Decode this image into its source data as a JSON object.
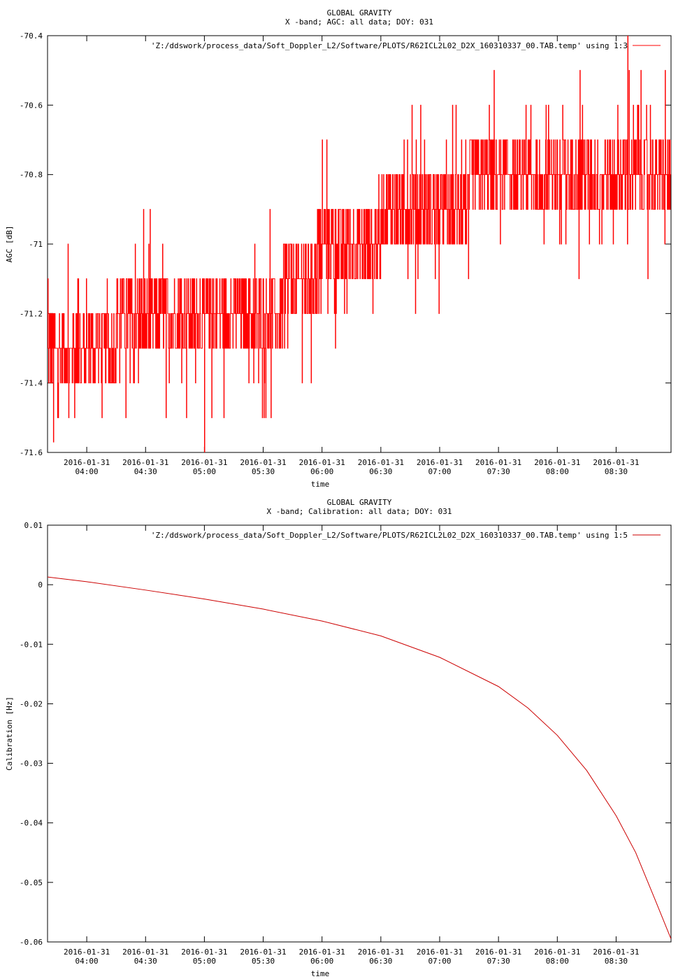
{
  "chart_data": [
    {
      "type": "line",
      "title": "GLOBAL GRAVITY",
      "subtitle": "X -band; AGC: all data; DOY: 031",
      "xlabel": "time",
      "ylabel": "AGC [dB]",
      "ylim": [
        -71.6,
        -70.4
      ],
      "xlim": [
        "2016-01-31 03:40",
        "2016-01-31 08:58"
      ],
      "yticks": [
        -70.4,
        -70.6,
        -70.8,
        -71,
        -71.2,
        -71.4,
        -71.6
      ],
      "ytick_labels": [
        "-70.4",
        "-70.6",
        "-70.8",
        "-71",
        "-71.2",
        "-71.4",
        "-71.6"
      ],
      "xticks": [
        "2016-01-31 04:00",
        "2016-01-31 04:30",
        "2016-01-31 05:00",
        "2016-01-31 05:30",
        "2016-01-31 06:00",
        "2016-01-31 06:30",
        "2016-01-31 07:00",
        "2016-01-31 07:30",
        "2016-01-31 08:00",
        "2016-01-31 08:30"
      ],
      "xtick_dates": [
        "2016-01-31",
        "2016-01-31",
        "2016-01-31",
        "2016-01-31",
        "2016-01-31",
        "2016-01-31",
        "2016-01-31",
        "2016-01-31",
        "2016-01-31",
        "2016-01-31"
      ],
      "xtick_times": [
        "04:00",
        "04:30",
        "05:00",
        "05:30",
        "06:00",
        "06:30",
        "07:00",
        "07:30",
        "08:00",
        "08:30"
      ],
      "legend": "top-right",
      "grid": false,
      "color": "#ff0000",
      "series": [
        {
          "name": "'Z:/ddswork/process_data/Soft_Doppler_L2/Software/PLOTS/R62ICL2L02_D2X_160310337_00.TAB.temp' using 1:3",
          "trend": [
            [
              "2016-01-31 03:40",
              -71.28
            ],
            [
              "2016-01-31 04:00",
              -71.26
            ],
            [
              "2016-01-31 04:30",
              -71.24
            ],
            [
              "2016-01-31 05:00",
              -71.22
            ],
            [
              "2016-01-31 05:30",
              -71.2
            ],
            [
              "2016-01-31 05:50",
              -71.1
            ],
            [
              "2016-01-31 06:05",
              -71.0
            ],
            [
              "2016-01-31 06:30",
              -70.95
            ],
            [
              "2016-01-31 07:00",
              -70.88
            ],
            [
              "2016-01-31 07:30",
              -70.82
            ],
            [
              "2016-01-31 08:00",
              -70.79
            ],
            [
              "2016-01-31 08:30",
              -70.8
            ],
            [
              "2016-01-31 08:58",
              -70.85
            ]
          ],
          "resolution_db": 0.1,
          "spikes": [
            [
              "2016-01-31 03:43",
              -71.57
            ],
            [
              "2016-01-31 05:00",
              -71.6
            ],
            [
              "2016-01-31 08:36",
              -70.4
            ]
          ]
        }
      ]
    },
    {
      "type": "line",
      "title": "GLOBAL GRAVITY",
      "subtitle": "X -band; Calibration: all data; DOY: 031",
      "xlabel": "time",
      "ylabel": "Calibration [Hz]",
      "ylim": [
        -0.06,
        0.01
      ],
      "xlim": [
        "2016-01-31 03:40",
        "2016-01-31 08:58"
      ],
      "yticks": [
        0.01,
        0,
        -0.01,
        -0.02,
        -0.03,
        -0.04,
        -0.05,
        -0.06
      ],
      "ytick_labels": [
        "0.01",
        "0",
        "-0.01",
        "-0.02",
        "-0.03",
        "-0.04",
        "-0.05",
        "-0.06"
      ],
      "xticks": [
        "2016-01-31 04:00",
        "2016-01-31 04:30",
        "2016-01-31 05:00",
        "2016-01-31 05:30",
        "2016-01-31 06:00",
        "2016-01-31 06:30",
        "2016-01-31 07:00",
        "2016-01-31 07:30",
        "2016-01-31 08:00",
        "2016-01-31 08:30"
      ],
      "xtick_dates": [
        "2016-01-31",
        "2016-01-31",
        "2016-01-31",
        "2016-01-31",
        "2016-01-31",
        "2016-01-31",
        "2016-01-31",
        "2016-01-31",
        "2016-01-31",
        "2016-01-31"
      ],
      "xtick_times": [
        "04:00",
        "04:30",
        "05:00",
        "05:30",
        "06:00",
        "06:30",
        "07:00",
        "07:30",
        "08:00",
        "08:30"
      ],
      "legend": "top-right",
      "grid": false,
      "color": "#cc0000",
      "series": [
        {
          "name": "'Z:/ddswork/process_data/Soft_Doppler_L2/Software/PLOTS/R62ICL2L02_D2X_160310337_00.TAB.temp' using 1:5",
          "x": [
            "2016-01-31 03:40",
            "2016-01-31 04:00",
            "2016-01-31 04:30",
            "2016-01-31 05:00",
            "2016-01-31 05:30",
            "2016-01-31 06:00",
            "2016-01-31 06:30",
            "2016-01-31 07:00",
            "2016-01-31 07:30",
            "2016-01-31 07:45",
            "2016-01-31 08:00",
            "2016-01-31 08:15",
            "2016-01-31 08:30",
            "2016-01-31 08:40",
            "2016-01-31 08:50",
            "2016-01-31 08:58"
          ],
          "y": [
            0.0013,
            0.0005,
            -0.0009,
            -0.0024,
            -0.0041,
            -0.0061,
            -0.0086,
            -0.0122,
            -0.0171,
            -0.0207,
            -0.0253,
            -0.0312,
            -0.0388,
            -0.045,
            -0.053,
            -0.0595
          ]
        }
      ]
    }
  ]
}
